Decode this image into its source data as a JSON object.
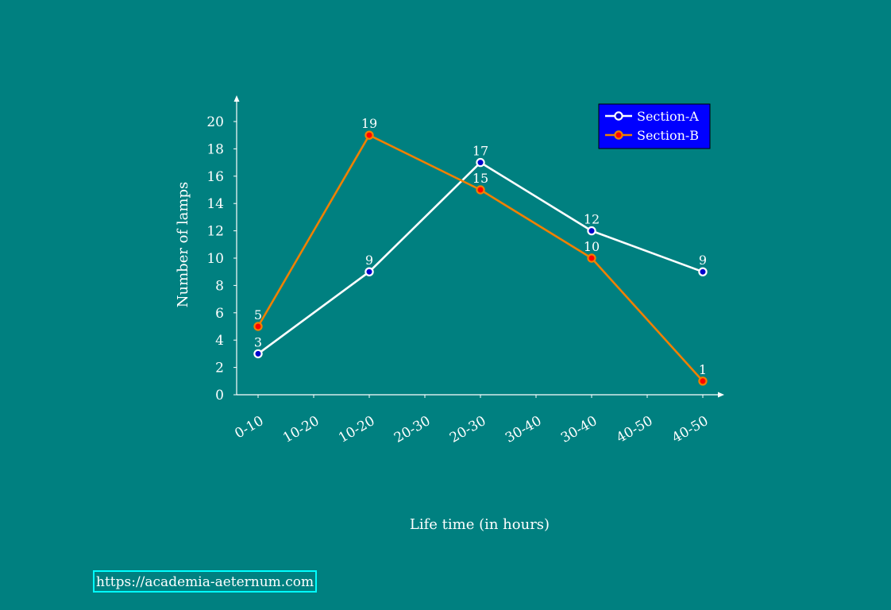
{
  "chart_data": {
    "type": "line",
    "title": "",
    "xlabel": "Life time (in hours)",
    "ylabel": "Number of lamps",
    "categories": [
      "0-10",
      "10-20",
      "10-20",
      "20-30",
      "20-30",
      "30-40",
      "30-40",
      "40-50",
      "40-50"
    ],
    "x_ticks": [
      0,
      1,
      2,
      3,
      4,
      5,
      6,
      7,
      8
    ],
    "ylim": [
      0,
      21
    ],
    "y_ticks": [
      0,
      2,
      4,
      6,
      8,
      10,
      12,
      14,
      16,
      18,
      20
    ],
    "grid": false,
    "legend_position": "top-right",
    "series": [
      {
        "name": "Section-A",
        "color": "#ffffff",
        "marker_color": "#0000cc",
        "x": [
          0,
          2,
          4,
          6,
          8
        ],
        "values": [
          3,
          9,
          17,
          12,
          9
        ],
        "labels": [
          "3",
          "9",
          "17",
          "12",
          "9"
        ]
      },
      {
        "name": "Section-B",
        "color": "#f08000",
        "marker_color": "#ff0000",
        "x": [
          0,
          2,
          4,
          6,
          8
        ],
        "values": [
          5,
          19,
          15,
          10,
          1
        ],
        "labels": [
          "5",
          "19",
          "15",
          "10",
          "1"
        ]
      }
    ],
    "legend_bg": "#0000ff"
  },
  "footer": {
    "source_url": "https://academia-aeternum.com"
  }
}
